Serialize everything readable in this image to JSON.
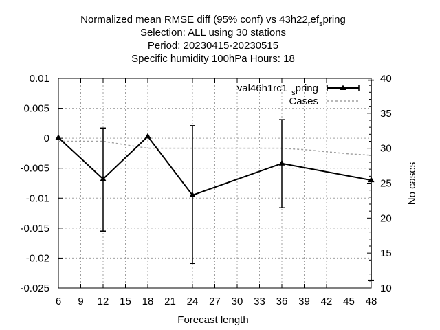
{
  "chart_data": {
    "type": "line",
    "title_lines": [
      "Normalized mean RMSE diff (95% conf) vs 43h22",
      "Selection: ALL using    30 stations",
      "Period: 20230415-20230515",
      "Specific humidity 100hPa   Hours:  18"
    ],
    "title_ref_sub": "r",
    "title_ref_mid": "ef",
    "title_ref_sub2": "s",
    "title_ref_end": "pring",
    "xlabel": "Forecast length",
    "ylabel": "",
    "y2label": "No cases",
    "xlim": [
      6,
      48
    ],
    "ylim": [
      -0.025,
      0.01
    ],
    "y2lim": [
      10,
      40
    ],
    "x_ticks": [
      "6",
      "9",
      "12",
      "15",
      "18",
      "21",
      "24",
      "27",
      "30",
      "33",
      "36",
      "39",
      "42",
      "45",
      "48"
    ],
    "y_ticks": [
      "0.01",
      "0.005",
      "0",
      "-0.005",
      "-0.01",
      "-0.015",
      "-0.02",
      "-0.025"
    ],
    "y2_ticks": [
      "40",
      "35",
      "30",
      "25",
      "20",
      "15",
      "10"
    ],
    "grid": true,
    "legend_position": "top-right",
    "series": [
      {
        "name_main": "val46h1rc1",
        "name_sub": "s",
        "name_end": "pring",
        "axis": "y",
        "color": "#000000",
        "x": [
          6,
          12,
          18,
          24,
          36,
          48
        ],
        "y": [
          0.0001,
          -0.0068,
          0.0003,
          -0.0095,
          -0.0042,
          -0.007
        ],
        "err_low": [
          0.0001,
          -0.0155,
          0.0003,
          -0.0209,
          -0.0116,
          -0.0237
        ],
        "err_high": [
          0.0001,
          0.0017,
          0.0003,
          0.0021,
          0.0031,
          0.0097
        ]
      },
      {
        "name": "Cases",
        "axis": "y2",
        "color": "#a0a0a0",
        "x": [
          6,
          12,
          15,
          18,
          21,
          24,
          27,
          30,
          33,
          36,
          39,
          42,
          45,
          48
        ],
        "y": [
          31,
          31,
          30.5,
          30,
          30,
          30,
          30,
          30,
          30,
          30,
          29.8,
          29.5,
          29.2,
          29
        ]
      }
    ]
  }
}
